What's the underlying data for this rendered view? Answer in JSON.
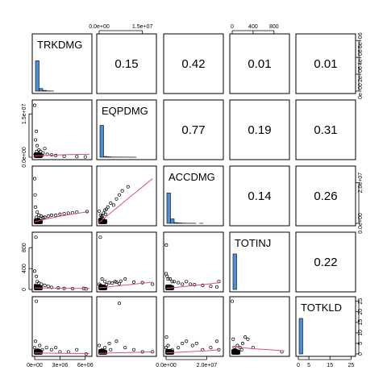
{
  "chart_data": {
    "type": "scatter",
    "layout": "pairs-matrix",
    "variables": [
      "TRKDMG",
      "EQPDMG",
      "ACCDMG",
      "TOTINJ",
      "TOTKLD"
    ],
    "correlations": [
      {
        "row": 0,
        "col": 1,
        "label": "0.15"
      },
      {
        "row": 0,
        "col": 2,
        "label": "0.42"
      },
      {
        "row": 0,
        "col": 3,
        "label": "0.01"
      },
      {
        "row": 0,
        "col": 4,
        "label": "0.01"
      },
      {
        "row": 1,
        "col": 2,
        "label": "0.77"
      },
      {
        "row": 1,
        "col": 3,
        "label": "0.19"
      },
      {
        "row": 1,
        "col": 4,
        "label": "0.31"
      },
      {
        "row": 2,
        "col": 3,
        "label": "0.14"
      },
      {
        "row": 2,
        "col": 4,
        "label": "0.26"
      },
      {
        "row": 3,
        "col": 4,
        "label": "0.22"
      }
    ],
    "ranges": {
      "TRKDMG": [
        0,
        6500000
      ],
      "EQPDMG": [
        0,
        19000000
      ],
      "ACCDMG": [
        0,
        27000000
      ],
      "TOTINJ": [
        0,
        1050
      ],
      "TOTKLD": [
        0,
        26
      ]
    },
    "axis_ticks": {
      "bottom": [
        {
          "var": "TRKDMG",
          "ticks": [
            {
              "v": 0,
              "label": "0e+00"
            },
            {
              "v": 3000000,
              "label": "3e+06"
            },
            {
              "v": 6000000,
              "label": "6e+06"
            }
          ]
        },
        {
          "var": "ACCDMG",
          "ticks": [
            {
              "v": 0,
              "label": "0.0e+00"
            },
            {
              "v": 20000000,
              "label": "2.0e+07"
            }
          ]
        },
        {
          "var": "TOTKLD",
          "ticks": [
            {
              "v": 0,
              "label": "0"
            },
            {
              "v": 5,
              "label": "5"
            },
            {
              "v": 15,
              "label": "15"
            },
            {
              "v": 25,
              "label": "25"
            }
          ]
        }
      ],
      "top": [
        {
          "var": "EQPDMG",
          "ticks": [
            {
              "v": 0,
              "label": "0.0e+00"
            },
            {
              "v": 15000000,
              "label": "1.5e+07"
            }
          ]
        },
        {
          "var": "TOTINJ",
          "ticks": [
            {
              "v": 0,
              "label": "0"
            },
            {
              "v": 400,
              "label": "400"
            },
            {
              "v": 800,
              "label": "800"
            }
          ]
        }
      ],
      "left": [
        {
          "var": "EQPDMG",
          "ticks": [
            {
              "v": 0,
              "label": "0.0e+00"
            },
            {
              "v": 15000000,
              "label": "1.5e+07"
            }
          ]
        },
        {
          "var": "TOTINJ",
          "ticks": [
            {
              "v": 0,
              "label": "0"
            },
            {
              "v": 400,
              "label": "400"
            },
            {
              "v": 800,
              "label": "800"
            }
          ]
        }
      ],
      "right": [
        {
          "var": "TRKDMG",
          "ticks": [
            {
              "v": 0,
              "label": "0e+00"
            },
            {
              "v": 2000000,
              "label": "2e+06"
            },
            {
              "v": 4000000,
              "label": "4e+06"
            },
            {
              "v": 6000000,
              "label": "6e+06"
            }
          ]
        },
        {
          "var": "ACCDMG",
          "ticks": [
            {
              "v": 0,
              "label": "0.0e+00"
            },
            {
              "v": 20000000,
              "label": "2.0e+07"
            }
          ]
        },
        {
          "var": "TOTKLD",
          "ticks": [
            {
              "v": 0,
              "label": "0"
            },
            {
              "v": 5,
              "label": "5"
            },
            {
              "v": 10,
              "label": "10"
            },
            {
              "v": 15,
              "label": "15"
            },
            {
              "v": 20,
              "label": "20"
            },
            {
              "v": 25,
              "label": "25"
            }
          ]
        }
      ]
    },
    "histograms": {
      "TRKDMG": [
        0.82,
        0.07,
        0.02,
        0.005,
        0.003,
        0.0
      ],
      "EQPDMG": [
        0.86,
        0.02,
        0.01,
        0.005,
        0.004,
        0.003,
        0.002,
        0.002,
        0.002,
        0.001
      ],
      "ACCDMG": [
        0.82,
        0.12,
        0.02,
        0.01,
        0.005,
        0.003,
        0.002,
        0.002,
        0.0,
        0.001
      ],
      "TOTINJ": [
        0.96,
        0.0,
        0.0,
        0.0,
        0.0,
        0.0
      ],
      "TOTKLD": [
        0.96,
        0.0,
        0.0,
        0.0,
        0.0,
        0.0
      ]
    },
    "scatter_panels": [
      {
        "x": "TRKDMG",
        "y": "EQPDMG",
        "points": [
          [
            0,
            18000000
          ],
          [
            100000,
            6000000
          ],
          [
            300000,
            4000000
          ],
          [
            500000,
            2500000
          ],
          [
            700000,
            2000000
          ],
          [
            1000000,
            1500000
          ],
          [
            1200000,
            3000000
          ],
          [
            1500000,
            1000000
          ],
          [
            2000000,
            800000
          ],
          [
            2500000,
            600000
          ],
          [
            3500000,
            300000
          ],
          [
            5000000,
            200000
          ],
          [
            6000000,
            100000
          ],
          [
            200000,
            9000000
          ],
          [
            400000,
            1200000
          ],
          [
            600000,
            800000
          ],
          [
            800000,
            600000
          ],
          [
            50000,
            1000000
          ],
          [
            250000,
            2000000
          ],
          [
            900000,
            700000
          ]
        ],
        "smooth": [
          [
            0,
            500000
          ],
          [
            2000000,
            700000
          ],
          [
            4000000,
            900000
          ],
          [
            6500000,
            1000000
          ]
        ]
      },
      {
        "x": "TRKDMG",
        "y": "ACCDMG",
        "points": [
          [
            0,
            22000000
          ],
          [
            50000,
            14000000
          ],
          [
            100000,
            8000000
          ],
          [
            300000,
            5500000
          ],
          [
            500000,
            4000000
          ],
          [
            800000,
            3500000
          ],
          [
            1200000,
            3000000
          ],
          [
            1600000,
            3500000
          ],
          [
            2000000,
            4000000
          ],
          [
            2500000,
            4000000
          ],
          [
            3000000,
            4500000
          ],
          [
            3500000,
            4800000
          ],
          [
            4000000,
            5000000
          ],
          [
            4500000,
            5200000
          ],
          [
            5000000,
            5500000
          ],
          [
            6200000,
            5800000
          ],
          [
            200000,
            3000000
          ],
          [
            400000,
            2000000
          ],
          [
            700000,
            2500000
          ],
          [
            1000000,
            2800000
          ]
        ],
        "smooth": [
          [
            0,
            800000
          ],
          [
            1000000,
            1800000
          ],
          [
            2000000,
            2700000
          ],
          [
            3000000,
            3500000
          ],
          [
            4000000,
            4200000
          ],
          [
            5000000,
            4900000
          ],
          [
            6300000,
            5700000
          ]
        ]
      },
      {
        "x": "EQPDMG",
        "y": "ACCDMG",
        "points": [
          [
            0,
            6000000
          ],
          [
            500000,
            4000000
          ],
          [
            1000000,
            3500000
          ],
          [
            1500000,
            5000000
          ],
          [
            2000000,
            6500000
          ],
          [
            2500000,
            7000000
          ],
          [
            3000000,
            8000000
          ],
          [
            4000000,
            10000000
          ],
          [
            5000000,
            9000000
          ],
          [
            6000000,
            12000000
          ],
          [
            7000000,
            14000000
          ],
          [
            8000000,
            16000000
          ],
          [
            10000000,
            18000000
          ],
          [
            1200000,
            2500000
          ],
          [
            800000,
            3000000
          ],
          [
            300000,
            2000000
          ],
          [
            200000,
            1500000
          ],
          [
            2200000,
            4500000
          ]
        ],
        "smooth": [
          [
            0,
            300000
          ],
          [
            3000000,
            4000000
          ],
          [
            6000000,
            7500000
          ],
          [
            9000000,
            11000000
          ],
          [
            12000000,
            14500000
          ],
          [
            15000000,
            18000000
          ],
          [
            18500000,
            22000000
          ]
        ]
      },
      {
        "x": "TRKDMG",
        "y": "TOTINJ",
        "points": [
          [
            150000,
            1000
          ],
          [
            0,
            350
          ],
          [
            200000,
            250
          ],
          [
            300000,
            150
          ],
          [
            500000,
            120
          ],
          [
            800000,
            100
          ],
          [
            1200000,
            80
          ],
          [
            1600000,
            60
          ],
          [
            2000000,
            40
          ],
          [
            2800000,
            30
          ],
          [
            3500000,
            20
          ],
          [
            4500000,
            15
          ],
          [
            5800000,
            20
          ],
          [
            6100000,
            10
          ],
          [
            100000,
            80
          ],
          [
            400000,
            50
          ]
        ],
        "smooth": [
          [
            0,
            30
          ],
          [
            2000000,
            25
          ],
          [
            4000000,
            22
          ],
          [
            6500000,
            20
          ]
        ]
      },
      {
        "x": "EQPDMG",
        "y": "TOTINJ",
        "points": [
          [
            400000,
            1000
          ],
          [
            0,
            100
          ],
          [
            500000,
            80
          ],
          [
            1000000,
            200
          ],
          [
            2000000,
            150
          ],
          [
            2500000,
            90
          ],
          [
            3500000,
            130
          ],
          [
            4500000,
            120
          ],
          [
            5500000,
            150
          ],
          [
            6000000,
            140
          ],
          [
            7000000,
            110
          ],
          [
            7500000,
            160
          ],
          [
            9000000,
            200
          ],
          [
            12000000,
            140
          ],
          [
            15000000,
            130
          ],
          [
            18500000,
            100
          ],
          [
            1500000,
            60
          ]
        ],
        "smooth": [
          [
            0,
            30
          ],
          [
            5000000,
            60
          ],
          [
            10000000,
            90
          ],
          [
            15000000,
            120
          ],
          [
            18500000,
            140
          ]
        ]
      },
      {
        "x": "ACCDMG",
        "y": "TOTINJ",
        "points": [
          [
            100000,
            850
          ],
          [
            0,
            300
          ],
          [
            500000,
            250
          ],
          [
            1000000,
            200
          ],
          [
            2000000,
            200
          ],
          [
            3000000,
            150
          ],
          [
            4000000,
            150
          ],
          [
            6000000,
            130
          ],
          [
            8000000,
            100
          ],
          [
            10000000,
            150
          ],
          [
            12000000,
            100
          ],
          [
            14000000,
            90
          ],
          [
            18000000,
            80
          ],
          [
            22000000,
            60
          ],
          [
            25000000,
            50
          ],
          [
            26000000,
            150
          ]
        ],
        "smooth": [
          [
            0,
            20
          ],
          [
            10000000,
            60
          ],
          [
            20000000,
            100
          ],
          [
            26000000,
            130
          ]
        ]
      },
      {
        "x": "TRKDMG",
        "y": "TOTKLD",
        "points": [
          [
            200000,
            25
          ],
          [
            0,
            3
          ],
          [
            100000,
            6
          ],
          [
            400000,
            2
          ],
          [
            600000,
            4
          ],
          [
            900000,
            2
          ],
          [
            1400000,
            3
          ],
          [
            2000000,
            2
          ],
          [
            2500000,
            3
          ],
          [
            3000000,
            1
          ],
          [
            4000000,
            1
          ],
          [
            5000000,
            2
          ],
          [
            6100000,
            0
          ]
        ],
        "smooth": [
          [
            0,
            0.5
          ],
          [
            3000000,
            0.3
          ],
          [
            6500000,
            0.2
          ]
        ]
      },
      {
        "x": "EQPDMG",
        "y": "TOTKLD",
        "points": [
          [
            7000000,
            24
          ],
          [
            0,
            4
          ],
          [
            1000000,
            2
          ],
          [
            2000000,
            3
          ],
          [
            3500000,
            5
          ],
          [
            4000000,
            2
          ],
          [
            6000000,
            6
          ],
          [
            9000000,
            3
          ],
          [
            12000000,
            2
          ],
          [
            15000000,
            1
          ],
          [
            18500000,
            1
          ]
        ],
        "smooth": [
          [
            0,
            0.3
          ],
          [
            9000000,
            0.6
          ],
          [
            18500000,
            1
          ]
        ]
      },
      {
        "x": "ACCDMG",
        "y": "TOTKLD",
        "points": [
          [
            200000,
            8
          ],
          [
            0,
            3
          ],
          [
            1000000,
            4
          ],
          [
            3000000,
            2
          ],
          [
            6000000,
            3
          ],
          [
            8000000,
            5
          ],
          [
            10000000,
            6
          ],
          [
            13000000,
            4
          ],
          [
            15000000,
            5
          ],
          [
            18000000,
            2
          ],
          [
            22000000,
            3
          ],
          [
            25000000,
            6
          ],
          [
            26000000,
            2
          ]
        ],
        "smooth": [
          [
            0,
            0.5
          ],
          [
            10000000,
            1
          ],
          [
            20000000,
            1.5
          ],
          [
            26000000,
            2
          ]
        ]
      },
      {
        "x": "TOTINJ",
        "y": "TOTKLD",
        "points": [
          [
            0,
            25
          ],
          [
            20,
            7
          ],
          [
            40,
            3
          ],
          [
            60,
            2
          ],
          [
            100,
            4
          ],
          [
            150,
            3
          ],
          [
            200,
            5
          ],
          [
            300,
            7
          ],
          [
            250,
            8
          ],
          [
            180,
            2
          ],
          [
            400,
            3
          ],
          [
            950,
            1
          ]
        ],
        "smooth": [
          [
            0,
            3.5
          ],
          [
            200,
            3
          ],
          [
            400,
            2.5
          ],
          [
            700,
            2
          ],
          [
            1000,
            1.5
          ]
        ]
      }
    ],
    "colors": {
      "histogram_fill": "#4a90d9",
      "smooth_line": "#df536b",
      "points": "#000000"
    }
  }
}
